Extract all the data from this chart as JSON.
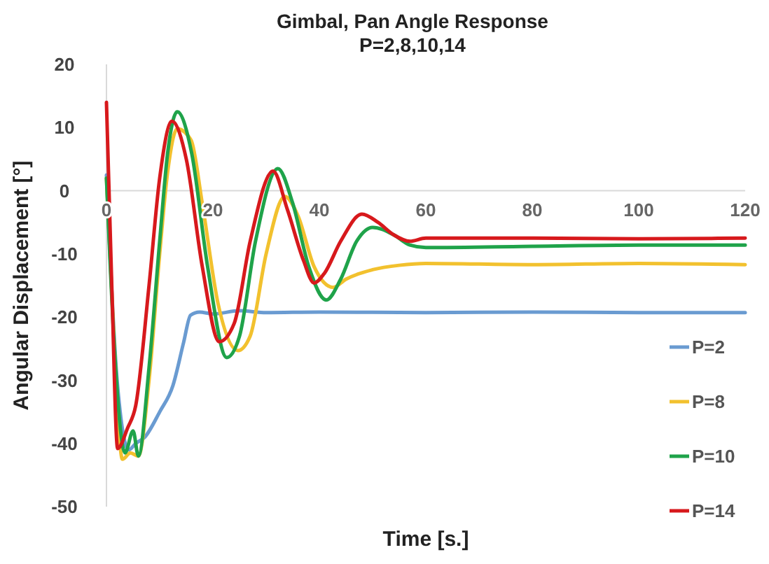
{
  "chart_data": {
    "type": "line",
    "title": "Gimbal, Pan Angle Response",
    "subtitle": "P=2,8,10,14",
    "xlabel": "Time [s.]",
    "ylabel": "Angular Displacement [°]",
    "xlim": [
      0,
      120
    ],
    "xticks": [
      0,
      20,
      40,
      60,
      80,
      100,
      120
    ],
    "ylim": [
      -50,
      20
    ],
    "yticks": [
      -50,
      -40,
      -30,
      -20,
      -10,
      0,
      10,
      20
    ],
    "grid": false,
    "legend": "bottom right",
    "marker": "none",
    "line_style": "solid",
    "series": [
      {
        "name": "P=2",
        "color": "#6a9bd1",
        "x": [
          0,
          2,
          4.2,
          5.5,
          7.2,
          10,
          12.5,
          14.5,
          15.8,
          17.5,
          20,
          25,
          30,
          40,
          60,
          80,
          100,
          120
        ],
        "values": [
          2.5,
          -30,
          -41,
          -40,
          -39,
          -35,
          -30.8,
          -24,
          -19.7,
          -19.2,
          -19.5,
          -19,
          -19.3,
          -19.2,
          -19.3,
          -19.2,
          -19.3,
          -19.3
        ]
      },
      {
        "name": "P=8",
        "color": "#f2c12e",
        "x": [
          0,
          1.5,
          3,
          4.5,
          6,
          8,
          10,
          11.5,
          13.3,
          15.9,
          18,
          21,
          24.7,
          27,
          30,
          33.5,
          36,
          39,
          42.6,
          45,
          50,
          55,
          60,
          80,
          100,
          120
        ],
        "values": [
          2,
          -25,
          -42.5,
          -41.5,
          -42,
          -30,
          -10,
          3,
          9.8,
          8,
          -2,
          -18,
          -25.3,
          -23,
          -10,
          -0.9,
          -4,
          -12,
          -15.3,
          -14,
          -12.5,
          -11.8,
          -11.5,
          -11.7,
          -11.5,
          -11.7
        ]
      },
      {
        "name": "P=10",
        "color": "#1fa34a",
        "x": [
          0,
          1.5,
          3.5,
          5,
          6,
          8,
          10,
          11.5,
          13.3,
          16,
          19,
          22.6,
          25,
          28,
          32.2,
          35,
          38,
          41.3,
          44,
          47,
          50,
          54,
          57,
          60,
          80,
          100,
          120
        ],
        "values": [
          2,
          -25,
          -41.5,
          -38,
          -42,
          -28,
          -8,
          6,
          12.5,
          6,
          -12,
          -26.4,
          -23,
          -8,
          3.5,
          -2,
          -12,
          -17.3,
          -14,
          -8,
          -5.8,
          -7,
          -8.6,
          -9,
          -8.8,
          -8.6,
          -8.6
        ]
      },
      {
        "name": "P=14",
        "color": "#d7191c",
        "x": [
          0,
          1,
          2.1,
          4,
          5.5,
          8,
          10,
          12.3,
          15,
          18,
          21.2,
          24,
          27,
          31.3,
          34,
          37,
          39,
          41,
          44,
          48,
          51,
          54,
          57,
          60,
          80,
          100,
          120
        ],
        "values": [
          14,
          -15,
          -40.8,
          -37.5,
          -34,
          -15,
          2,
          11,
          5,
          -12,
          -23.9,
          -21,
          -8,
          3.1,
          -3,
          -11,
          -14.6,
          -13,
          -8,
          -3.7,
          -5,
          -7,
          -8,
          -7.5,
          -7.5,
          -7.6,
          -7.5
        ]
      }
    ]
  }
}
